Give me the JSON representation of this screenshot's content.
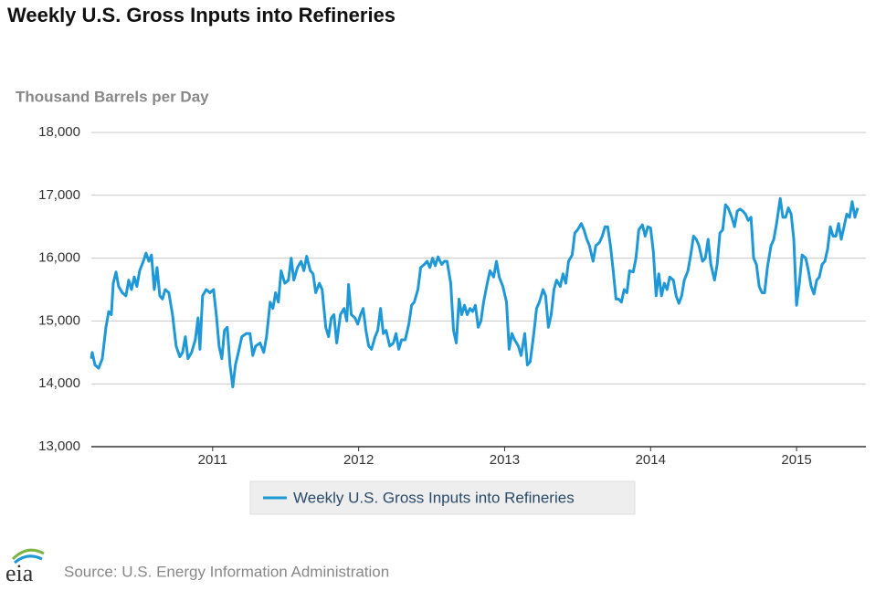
{
  "chart_data": {
    "type": "line",
    "title": "Weekly U.S. Gross Inputs into Refineries",
    "y_axis_label": "Thousand Barrels per Day",
    "source": "Source: U.S. Energy Information Administration",
    "logo": "eia",
    "xlim": [
      2010.169,
      2015.475
    ],
    "xticks": [
      2011,
      2012,
      2013,
      2014,
      2015
    ],
    "ylim": [
      13000,
      18000
    ],
    "yticks": [
      {
        "value": 13000,
        "label": "13,000"
      },
      {
        "value": 14000,
        "label": "14,000"
      },
      {
        "value": 15000,
        "label": "15,000"
      },
      {
        "value": 16000,
        "label": "16,000"
      },
      {
        "value": 17000,
        "label": "17,000"
      },
      {
        "value": 18000,
        "label": "18,000"
      }
    ],
    "grid": true,
    "legend": "bottom",
    "x": [
      2010.169,
      2010.175,
      2010.194,
      2010.219,
      2010.244,
      2010.269,
      2010.288,
      2010.306,
      2010.319,
      2010.338,
      2010.356,
      2010.381,
      2010.406,
      2010.425,
      2010.444,
      2010.463,
      2010.481,
      2010.5,
      2010.525,
      2010.544,
      2010.563,
      2010.581,
      2010.6,
      2010.619,
      2010.638,
      2010.656,
      2010.675,
      2010.7,
      2010.725,
      2010.75,
      2010.775,
      2010.794,
      2010.813,
      2010.831,
      2010.856,
      2010.881,
      2010.9,
      2010.913,
      2010.931,
      2010.956,
      2010.981,
      2011.006,
      2011.025,
      2011.044,
      2011.063,
      2011.081,
      2011.1,
      2011.119,
      2011.138,
      2011.156,
      2011.181,
      2011.2,
      2011.231,
      2011.256,
      2011.275,
      2011.294,
      2011.325,
      2011.35,
      2011.369,
      2011.394,
      2011.413,
      2011.431,
      2011.45,
      2011.469,
      2011.494,
      2011.519,
      2011.538,
      2011.556,
      2011.581,
      2011.606,
      2011.625,
      2011.644,
      2011.669,
      2011.688,
      2011.706,
      2011.731,
      2011.75,
      2011.775,
      2011.794,
      2011.813,
      2011.831,
      2011.85,
      2011.875,
      2011.9,
      2011.919,
      2011.931,
      2011.95,
      2011.975,
      2011.994,
      2012.013,
      2012.031,
      2012.05,
      2012.069,
      2012.088,
      2012.113,
      2012.131,
      2012.15,
      2012.169,
      2012.188,
      2012.213,
      2012.238,
      2012.256,
      2012.275,
      2012.294,
      2012.319,
      2012.344,
      2012.363,
      2012.381,
      2012.406,
      2012.425,
      2012.45,
      2012.469,
      2012.488,
      2012.506,
      2012.525,
      2012.544,
      2012.569,
      2012.588,
      2012.606,
      2012.631,
      2012.65,
      2012.669,
      2012.688,
      2012.706,
      2012.725,
      2012.744,
      2012.763,
      2012.781,
      2012.8,
      2012.819,
      2012.838,
      2012.856,
      2012.881,
      2012.9,
      2012.925,
      2012.944,
      2012.963,
      2012.988,
      2013.013,
      2013.031,
      2013.05,
      2013.069,
      2013.094,
      2013.113,
      2013.138,
      2013.156,
      2013.175,
      2013.2,
      2013.219,
      2013.238,
      2013.263,
      2013.281,
      2013.3,
      2013.319,
      2013.338,
      2013.356,
      2013.381,
      2013.4,
      2013.419,
      2013.438,
      2013.463,
      2013.481,
      2013.5,
      2013.525,
      2013.544,
      2013.563,
      2013.581,
      2013.606,
      2013.625,
      2013.65,
      2013.669,
      2013.688,
      2013.706,
      2013.725,
      2013.744,
      2013.763,
      2013.781,
      2013.8,
      2013.819,
      2013.838,
      2013.856,
      2013.881,
      2013.9,
      2013.919,
      2013.944,
      2013.963,
      2013.981,
      2014.0,
      2014.019,
      2014.038,
      2014.056,
      2014.075,
      2014.094,
      2014.113,
      2014.131,
      2014.156,
      2014.175,
      2014.194,
      2014.213,
      2014.231,
      2014.256,
      2014.275,
      2014.294,
      2014.313,
      2014.331,
      2014.356,
      2014.375,
      2014.394,
      2014.413,
      2014.438,
      2014.456,
      2014.475,
      2014.494,
      2014.513,
      2014.531,
      2014.556,
      2014.575,
      2014.594,
      2014.613,
      2014.631,
      2014.65,
      2014.669,
      2014.688,
      2014.706,
      2014.725,
      2014.744,
      2014.763,
      2014.781,
      2014.8,
      2014.825,
      2014.844,
      2014.863,
      2014.888,
      2014.906,
      2014.925,
      2014.944,
      2014.963,
      2014.981,
      2015.0,
      2015.019,
      2015.038,
      2015.063,
      2015.081,
      2015.1,
      2015.119,
      2015.138,
      2015.156,
      2015.175,
      2015.194,
      2015.213,
      2015.231,
      2015.25,
      2015.269,
      2015.288,
      2015.306,
      2015.325,
      2015.344,
      2015.363,
      2015.381,
      2015.4,
      2015.419
    ],
    "series": [
      {
        "name": "Weekly U.S. Gross Inputs into Refineries",
        "color": "#1e98d7",
        "values": [
          14400,
          14500,
          14300,
          14250,
          14400,
          14900,
          15150,
          15100,
          15600,
          15780,
          15550,
          15450,
          15400,
          15650,
          15500,
          15700,
          15550,
          15800,
          15950,
          16080,
          15950,
          16050,
          15500,
          15850,
          15400,
          15350,
          15500,
          15450,
          15100,
          14600,
          14430,
          14500,
          14750,
          14400,
          14500,
          14700,
          15050,
          14550,
          15400,
          15500,
          15450,
          15500,
          15100,
          14600,
          14400,
          14850,
          14900,
          14300,
          13950,
          14300,
          14550,
          14750,
          14800,
          14800,
          14450,
          14600,
          14650,
          14500,
          14750,
          15300,
          15200,
          15450,
          15300,
          15800,
          15600,
          15650,
          16000,
          15650,
          15850,
          15950,
          15800,
          16030,
          15800,
          15750,
          15450,
          15600,
          15500,
          14900,
          14750,
          15050,
          15100,
          14650,
          15100,
          15200,
          15000,
          15580,
          15100,
          15050,
          14950,
          15100,
          15200,
          14850,
          14600,
          14550,
          14750,
          14850,
          15200,
          14800,
          14850,
          14600,
          14650,
          14800,
          14550,
          14700,
          14700,
          14950,
          15250,
          15300,
          15500,
          15850,
          15900,
          15950,
          15850,
          16000,
          15880,
          16020,
          15900,
          15950,
          15950,
          15600,
          14850,
          14650,
          15350,
          15100,
          15250,
          15100,
          15200,
          15150,
          15250,
          14900,
          15000,
          15300,
          15600,
          15800,
          15700,
          15950,
          15700,
          15550,
          15300,
          14550,
          14800,
          14700,
          14600,
          14450,
          14800,
          14300,
          14350,
          14800,
          15200,
          15300,
          15500,
          15400,
          14900,
          15100,
          15500,
          15650,
          15550,
          15750,
          15600,
          15950,
          16050,
          16400,
          16450,
          16550,
          16450,
          16300,
          16200,
          15950,
          16200,
          16250,
          16350,
          16500,
          16500,
          16200,
          15800,
          15350,
          15350,
          15300,
          15500,
          15450,
          15800,
          15780,
          16000,
          16450,
          16530,
          16350,
          16500,
          16480,
          16100,
          15400,
          15750,
          15400,
          15600,
          15500,
          15700,
          15650,
          15400,
          15280,
          15400,
          15650,
          15800,
          16050,
          16350,
          16300,
          16200,
          15950,
          16000,
          16300,
          15900,
          15650,
          15900,
          16400,
          16450,
          16850,
          16800,
          16650,
          16500,
          16750,
          16780,
          16750,
          16700,
          16600,
          16650,
          16000,
          15900,
          15550,
          15450,
          15450,
          15850,
          16200,
          16300,
          16550,
          16950,
          16650,
          16650,
          16800,
          16700,
          16300,
          15250,
          15600,
          16050,
          16000,
          15800,
          15550,
          15430,
          15650,
          15700,
          15900,
          15950,
          16150,
          16500,
          16350,
          16350,
          16550,
          16300,
          16500,
          16700,
          16650,
          16900,
          16650,
          16800
        ]
      }
    ]
  }
}
